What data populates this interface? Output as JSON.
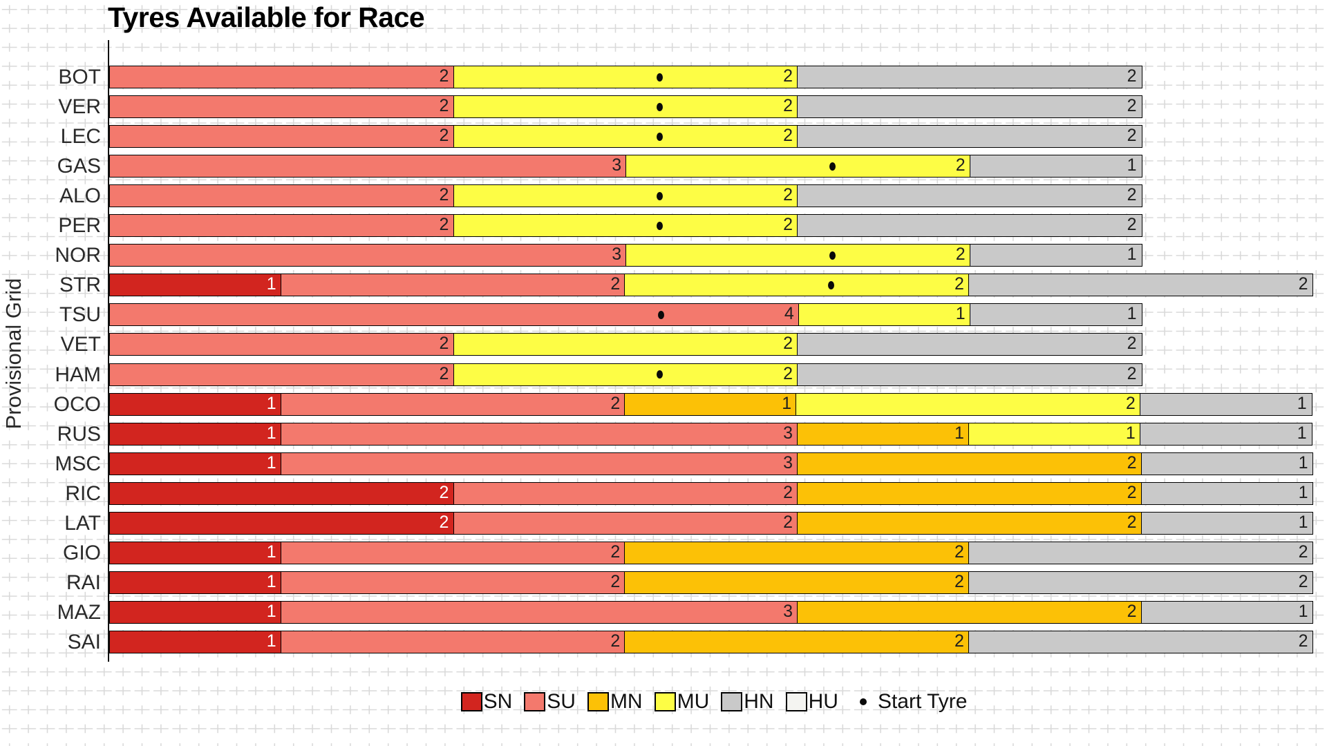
{
  "title": "Tyres Available for Race",
  "y_axis_label": "Provisional Grid",
  "legend": {
    "items": [
      {
        "code": "SN",
        "color": "#d2251f"
      },
      {
        "code": "SU",
        "color": "#f3796d"
      },
      {
        "code": "MN",
        "color": "#fcc106"
      },
      {
        "code": "MU",
        "color": "#fdfd45"
      },
      {
        "code": "HN",
        "color": "#c9c9c9"
      },
      {
        "code": "HU",
        "color": "#f4f4f1"
      }
    ],
    "start_marker_label": "Start Tyre"
  },
  "chart_data": {
    "type": "bar",
    "orientation": "horizontal",
    "stacked": true,
    "title": "Tyres Available for Race",
    "ylabel": "Provisional Grid",
    "xlabel": "",
    "xlim": [
      0,
      7
    ],
    "x_ticks_visible": false,
    "grid": "plus-pattern background",
    "legend_position": "bottom-center",
    "start_marker_legend": "Start Tyre",
    "compound_colors": {
      "SN": "#d2251f",
      "SU": "#f3796d",
      "MN": "#fcc106",
      "MU": "#fdfd45",
      "HN": "#c9c9c9",
      "HU": "#f4f4f1"
    },
    "categories": [
      "BOT",
      "VER",
      "LEC",
      "GAS",
      "ALO",
      "PER",
      "NOR",
      "STR",
      "TSU",
      "VET",
      "HAM",
      "OCO",
      "RUS",
      "MSC",
      "RIC",
      "LAT",
      "GIO",
      "RAI",
      "MAZ",
      "SAI"
    ],
    "bars": [
      {
        "driver": "BOT",
        "segments": [
          {
            "code": "SU",
            "count": 2
          },
          {
            "code": "MU",
            "count": 2,
            "start": true
          },
          {
            "code": "HN",
            "count": 2
          }
        ]
      },
      {
        "driver": "VER",
        "segments": [
          {
            "code": "SU",
            "count": 2
          },
          {
            "code": "MU",
            "count": 2,
            "start": true
          },
          {
            "code": "HN",
            "count": 2
          }
        ]
      },
      {
        "driver": "LEC",
        "segments": [
          {
            "code": "SU",
            "count": 2
          },
          {
            "code": "MU",
            "count": 2,
            "start": true
          },
          {
            "code": "HN",
            "count": 2
          }
        ]
      },
      {
        "driver": "GAS",
        "segments": [
          {
            "code": "SU",
            "count": 3
          },
          {
            "code": "MU",
            "count": 2,
            "start": true
          },
          {
            "code": "HN",
            "count": 1
          }
        ]
      },
      {
        "driver": "ALO",
        "segments": [
          {
            "code": "SU",
            "count": 2
          },
          {
            "code": "MU",
            "count": 2,
            "start": true
          },
          {
            "code": "HN",
            "count": 2
          }
        ]
      },
      {
        "driver": "PER",
        "segments": [
          {
            "code": "SU",
            "count": 2
          },
          {
            "code": "MU",
            "count": 2,
            "start": true
          },
          {
            "code": "HN",
            "count": 2
          }
        ]
      },
      {
        "driver": "NOR",
        "segments": [
          {
            "code": "SU",
            "count": 3
          },
          {
            "code": "MU",
            "count": 2,
            "start": true
          },
          {
            "code": "HN",
            "count": 1
          }
        ]
      },
      {
        "driver": "STR",
        "segments": [
          {
            "code": "SN",
            "count": 1
          },
          {
            "code": "SU",
            "count": 2
          },
          {
            "code": "MU",
            "count": 2,
            "start": true
          },
          {
            "code": "HN",
            "count": 2
          }
        ]
      },
      {
        "driver": "TSU",
        "segments": [
          {
            "code": "SU",
            "count": 4,
            "start": true
          },
          {
            "code": "MU",
            "count": 1
          },
          {
            "code": "HN",
            "count": 1
          }
        ]
      },
      {
        "driver": "VET",
        "segments": [
          {
            "code": "SU",
            "count": 2
          },
          {
            "code": "MU",
            "count": 2
          },
          {
            "code": "HN",
            "count": 2
          }
        ]
      },
      {
        "driver": "HAM",
        "segments": [
          {
            "code": "SU",
            "count": 2
          },
          {
            "code": "MU",
            "count": 2,
            "start": true
          },
          {
            "code": "HN",
            "count": 2
          }
        ]
      },
      {
        "driver": "OCO",
        "segments": [
          {
            "code": "SN",
            "count": 1
          },
          {
            "code": "SU",
            "count": 2
          },
          {
            "code": "MN",
            "count": 1
          },
          {
            "code": "MU",
            "count": 2
          },
          {
            "code": "HN",
            "count": 1
          }
        ]
      },
      {
        "driver": "RUS",
        "segments": [
          {
            "code": "SN",
            "count": 1
          },
          {
            "code": "SU",
            "count": 3
          },
          {
            "code": "MN",
            "count": 1
          },
          {
            "code": "MU",
            "count": 1
          },
          {
            "code": "HN",
            "count": 1
          }
        ]
      },
      {
        "driver": "MSC",
        "segments": [
          {
            "code": "SN",
            "count": 1
          },
          {
            "code": "SU",
            "count": 3
          },
          {
            "code": "MN",
            "count": 2
          },
          {
            "code": "HN",
            "count": 1
          }
        ]
      },
      {
        "driver": "RIC",
        "segments": [
          {
            "code": "SN",
            "count": 2
          },
          {
            "code": "SU",
            "count": 2
          },
          {
            "code": "MN",
            "count": 2
          },
          {
            "code": "HN",
            "count": 1
          }
        ]
      },
      {
        "driver": "LAT",
        "segments": [
          {
            "code": "SN",
            "count": 2
          },
          {
            "code": "SU",
            "count": 2
          },
          {
            "code": "MN",
            "count": 2
          },
          {
            "code": "HN",
            "count": 1
          }
        ]
      },
      {
        "driver": "GIO",
        "segments": [
          {
            "code": "SN",
            "count": 1
          },
          {
            "code": "SU",
            "count": 2
          },
          {
            "code": "MN",
            "count": 2
          },
          {
            "code": "HN",
            "count": 2
          }
        ]
      },
      {
        "driver": "RAI",
        "segments": [
          {
            "code": "SN",
            "count": 1
          },
          {
            "code": "SU",
            "count": 2
          },
          {
            "code": "MN",
            "count": 2
          },
          {
            "code": "HN",
            "count": 2
          }
        ]
      },
      {
        "driver": "MAZ",
        "segments": [
          {
            "code": "SN",
            "count": 1
          },
          {
            "code": "SU",
            "count": 3
          },
          {
            "code": "MN",
            "count": 2
          },
          {
            "code": "HN",
            "count": 1
          }
        ]
      },
      {
        "driver": "SAI",
        "segments": [
          {
            "code": "SN",
            "count": 1
          },
          {
            "code": "SU",
            "count": 2
          },
          {
            "code": "MN",
            "count": 2
          },
          {
            "code": "HN",
            "count": 2
          }
        ]
      }
    ]
  }
}
